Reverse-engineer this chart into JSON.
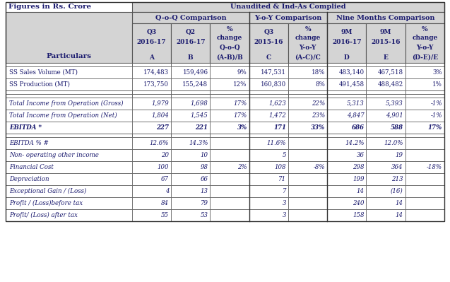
{
  "title_left": "Figures in Rs. Crore",
  "title_top": "Unaudited & Ind-As Complied",
  "section_headers": [
    "Q-o-Q Comparison",
    "Y-o-Y Comparison",
    "Nine Months Comparison"
  ],
  "col_header_data": [
    {
      "l1": "Q3",
      "l2": "2016-17",
      "l3": "A"
    },
    {
      "l1": "Q2",
      "l2": "2016-17",
      "l3": "B"
    },
    {
      "l1": "%\nchange\nQ-o-Q",
      "l2": "",
      "l3": "(A-B)/B"
    },
    {
      "l1": "Q3",
      "l2": "2015-16",
      "l3": "C"
    },
    {
      "l1": "%\nchange\nY-o-Y",
      "l2": "",
      "l3": "(A-C)/C"
    },
    {
      "l1": "9M",
      "l2": "2016-17",
      "l3": "D"
    },
    {
      "l1": "9M",
      "l2": "2015-16",
      "l3": "E"
    },
    {
      "l1": "%\nchange\nY-o-Y",
      "l2": "",
      "l3": "(D-E)/E"
    }
  ],
  "rows": [
    {
      "label": "SS Sales Volume (MT)",
      "italic": false,
      "bold": false,
      "vals": [
        "174,483",
        "159,496",
        "9%",
        "147,531",
        "18%",
        "483,140",
        "467,518",
        "3%"
      ]
    },
    {
      "label": "SS Production (MT)",
      "italic": false,
      "bold": false,
      "vals": [
        "173,750",
        "155,248",
        "12%",
        "160,830",
        "8%",
        "491,458",
        "488,482",
        "1%"
      ]
    },
    {
      "label": "Total Income from Operation (Gross)",
      "italic": true,
      "bold": false,
      "vals": [
        "1,979",
        "1,698",
        "17%",
        "1,623",
        "22%",
        "5,313",
        "5,393",
        "-1%"
      ]
    },
    {
      "label": "Total Income from Operation (Net)",
      "italic": true,
      "bold": false,
      "vals": [
        "1,804",
        "1,545",
        "17%",
        "1,472",
        "23%",
        "4,847",
        "4,901",
        "-1%"
      ]
    },
    {
      "label": "EBITDA *",
      "italic": true,
      "bold": true,
      "vals": [
        "227",
        "221",
        "3%",
        "171",
        "33%",
        "686",
        "588",
        "17%"
      ]
    },
    {
      "label": "EBITDA % #",
      "italic": true,
      "bold": false,
      "vals": [
        "12.6%",
        "14.3%",
        "",
        "11.6%",
        "",
        "14.2%",
        "12.0%",
        ""
      ]
    },
    {
      "label": "Non- operating other income",
      "italic": true,
      "bold": false,
      "vals": [
        "20",
        "10",
        "",
        "5",
        "",
        "36",
        "19",
        ""
      ]
    },
    {
      "label": "Financial Cost",
      "italic": true,
      "bold": false,
      "vals": [
        "100",
        "98",
        "2%",
        "108",
        "-8%",
        "298",
        "364",
        "-18%"
      ]
    },
    {
      "label": "Depreciation",
      "italic": true,
      "bold": false,
      "vals": [
        "67",
        "66",
        "",
        "71",
        "",
        "199",
        "213",
        ""
      ]
    },
    {
      "label": "Exceptional Gain / (Loss)",
      "italic": true,
      "bold": false,
      "vals": [
        "4",
        "13",
        "",
        "7",
        "",
        "14",
        "(16)",
        ""
      ]
    },
    {
      "label": "Profit / (Loss)before tax",
      "italic": true,
      "bold": false,
      "vals": [
        "84",
        "79",
        "",
        "3",
        "",
        "240",
        "14",
        ""
      ]
    },
    {
      "label": "Profit/ (Loss) after tax",
      "italic": true,
      "bold": false,
      "vals": [
        "55",
        "53",
        "",
        "3",
        "",
        "158",
        "14",
        ""
      ]
    }
  ],
  "header_bg": "#d4d4d4",
  "white_bg": "#ffffff",
  "border_color": "#555555",
  "text_dark": "#1a1a6e",
  "italic_color": "#1a1a6e"
}
